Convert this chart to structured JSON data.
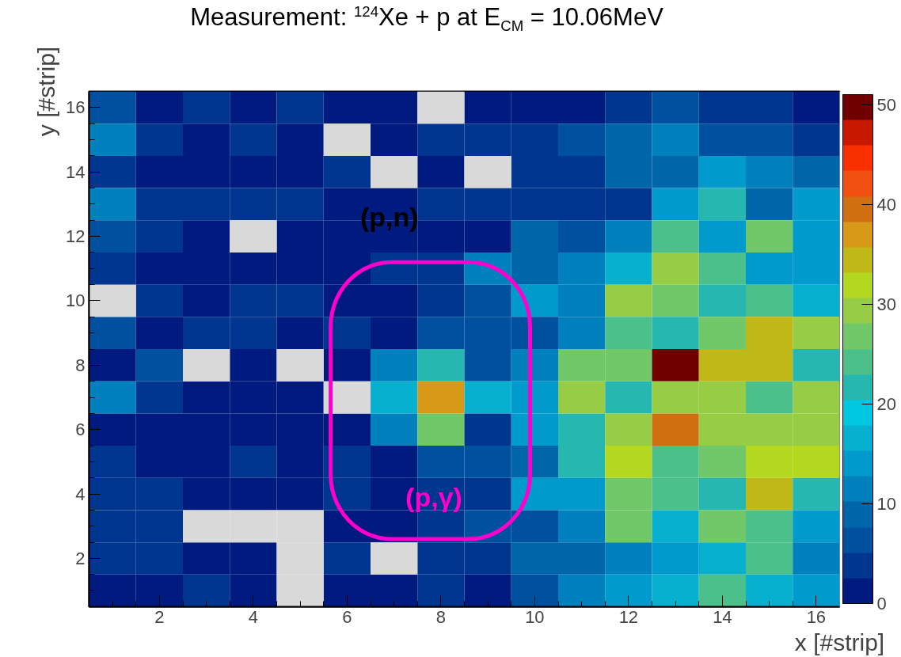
{
  "chart_data": {
    "type": "heatmap",
    "title": "Measurement: $^{124}$Xe + p at E$_{CM}$ = 10.06MeV",
    "xlabel": "x [#strip]",
    "ylabel": "y [#strip]",
    "categories": [
      null,
      "2",
      null,
      "4",
      null,
      "6",
      null,
      "8",
      null,
      "10",
      null,
      "12",
      null,
      "14",
      null,
      "16"
    ],
    "y_categories": [
      "16",
      null,
      "14",
      null,
      "12",
      null,
      "10",
      null,
      "8",
      null,
      "6",
      null,
      "4",
      null,
      "2",
      null
    ],
    "clim": [
      0,
      51
    ],
    "cticks": [
      0,
      10,
      20,
      30,
      40,
      50
    ],
    "colors": [
      "#001a80",
      "#00368f",
      "#0050a0",
      "#0066aa",
      "#0080bc",
      "#009acc",
      "#08b0cf",
      "#00c8e0",
      "#26b8b0",
      "#4bc08a",
      "#70c868",
      "#96cd44",
      "#b4d820",
      "#c0b818",
      "#d89818",
      "#d07010",
      "#f05010",
      "#f83000",
      "#c81800",
      "#700000"
    ],
    "cells": [
      [
        6,
        1,
        4,
        1,
        4,
        1,
        1,
        null,
        1,
        1,
        1,
        4,
        6,
        4,
        4,
        1
      ],
      [
        11,
        4,
        1,
        4,
        1,
        null,
        1,
        4,
        4,
        4,
        6,
        9,
        11,
        6,
        6,
        4
      ],
      [
        4,
        1,
        1,
        1,
        1,
        4,
        null,
        1,
        null,
        4,
        4,
        9,
        9,
        14,
        11,
        9
      ],
      [
        11,
        4,
        4,
        4,
        4,
        1,
        1,
        4,
        4,
        4,
        4,
        4,
        14,
        22,
        9,
        14
      ],
      [
        6,
        4,
        1,
        null,
        1,
        1,
        1,
        1,
        1,
        9,
        6,
        11,
        24,
        14,
        27,
        14
      ],
      [
        4,
        1,
        1,
        1,
        1,
        1,
        4,
        4,
        11,
        9,
        11,
        17,
        29,
        24,
        14,
        14
      ],
      [
        null,
        4,
        1,
        4,
        4,
        1,
        1,
        4,
        6,
        14,
        11,
        29,
        27,
        22,
        24,
        17
      ],
      [
        6,
        1,
        4,
        4,
        1,
        4,
        1,
        6,
        6,
        6,
        11,
        24,
        22,
        27,
        34,
        29
      ],
      [
        1,
        6,
        null,
        1,
        null,
        1,
        11,
        22,
        6,
        11,
        27,
        27,
        50,
        34,
        34,
        22
      ],
      [
        11,
        4,
        1,
        1,
        1,
        null,
        17,
        37,
        17,
        14,
        29,
        22,
        29,
        29,
        24,
        29
      ],
      [
        1,
        1,
        1,
        1,
        1,
        1,
        11,
        27,
        4,
        14,
        22,
        29,
        40,
        29,
        29,
        29
      ],
      [
        4,
        1,
        1,
        4,
        1,
        4,
        1,
        6,
        6,
        9,
        22,
        32,
        24,
        27,
        32,
        32
      ],
      [
        4,
        4,
        1,
        1,
        1,
        4,
        1,
        4,
        4,
        14,
        14,
        27,
        24,
        22,
        34,
        22
      ],
      [
        4,
        4,
        null,
        null,
        null,
        1,
        1,
        4,
        6,
        6,
        11,
        27,
        17,
        27,
        24,
        14
      ],
      [
        4,
        4,
        1,
        1,
        null,
        4,
        null,
        4,
        4,
        9,
        9,
        11,
        14,
        17,
        24,
        11
      ],
      [
        1,
        1,
        4,
        1,
        null,
        1,
        1,
        4,
        1,
        6,
        11,
        14,
        17,
        24,
        17,
        14
      ]
    ],
    "annotations": [
      "(p,n)",
      "(p,γ)"
    ]
  }
}
